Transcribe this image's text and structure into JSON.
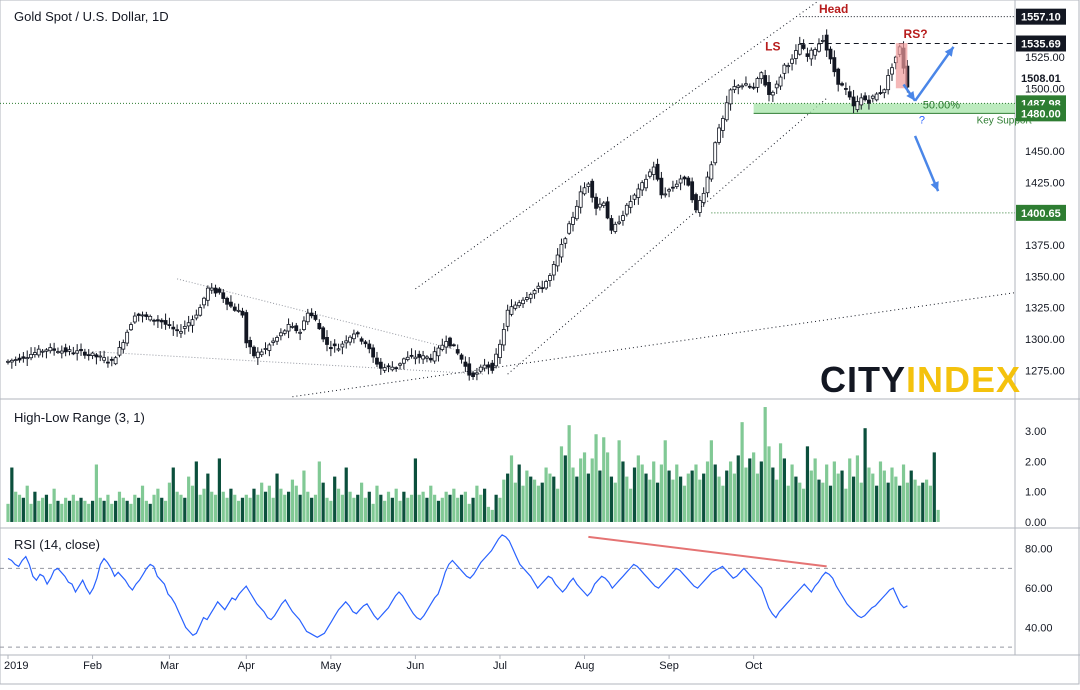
{
  "chart_data": [
    {
      "type": "candlestick",
      "title": "Gold Spot / U.S. Dollar, 1D",
      "ylim": [
        1253,
        1568
      ],
      "y_ticks": [
        1275,
        1300,
        1325,
        1350,
        1375,
        1425,
        1450,
        1500,
        1525
      ],
      "x_ticks": [
        "2019",
        "Feb",
        "Mar",
        "Apr",
        "May",
        "Jun",
        "Jul",
        "Aug",
        "Sep",
        "Oct"
      ],
      "price_path": [
        [
          0,
          1282
        ],
        [
          10,
          1292
        ],
        [
          20,
          1289
        ],
        [
          27,
          1282
        ],
        [
          29,
          1292
        ],
        [
          33,
          1320
        ],
        [
          40,
          1314
        ],
        [
          44,
          1305
        ],
        [
          48,
          1316
        ],
        [
          50,
          1325
        ],
        [
          52,
          1340
        ],
        [
          55,
          1337
        ],
        [
          58,
          1326
        ],
        [
          61,
          1320
        ],
        [
          62,
          1297
        ],
        [
          64,
          1287
        ],
        [
          67,
          1292
        ],
        [
          70,
          1301
        ],
        [
          73,
          1310
        ],
        [
          76,
          1306
        ],
        [
          78,
          1322
        ],
        [
          80,
          1315
        ],
        [
          83,
          1295
        ],
        [
          86,
          1293
        ],
        [
          88,
          1300
        ],
        [
          90,
          1305
        ],
        [
          93,
          1297
        ],
        [
          95,
          1285
        ],
        [
          97,
          1277
        ],
        [
          101,
          1278
        ],
        [
          103,
          1284
        ],
        [
          106,
          1286
        ],
        [
          110,
          1285
        ],
        [
          112,
          1291
        ],
        [
          114,
          1300
        ],
        [
          116,
          1293
        ],
        [
          118,
          1284
        ],
        [
          120,
          1272
        ],
        [
          122,
          1272
        ],
        [
          124,
          1280
        ],
        [
          126,
          1277
        ],
        [
          128,
          1295
        ],
        [
          130,
          1322
        ],
        [
          133,
          1330
        ],
        [
          136,
          1337
        ],
        [
          139,
          1342
        ],
        [
          141,
          1350
        ],
        [
          143,
          1366
        ],
        [
          145,
          1382
        ],
        [
          147,
          1398
        ],
        [
          149,
          1416
        ],
        [
          151,
          1425
        ],
        [
          153,
          1405
        ],
        [
          155,
          1410
        ],
        [
          157,
          1385
        ],
        [
          159,
          1395
        ],
        [
          162,
          1410
        ],
        [
          164,
          1418
        ],
        [
          166,
          1428
        ],
        [
          168,
          1438
        ],
        [
          170,
          1415
        ],
        [
          173,
          1421
        ],
        [
          175,
          1428
        ],
        [
          177,
          1424
        ],
        [
          179,
          1402
        ],
        [
          181,
          1418
        ],
        [
          183,
          1440
        ],
        [
          184,
          1458
        ],
        [
          186,
          1475
        ],
        [
          188,
          1498
        ],
        [
          190,
          1503
        ],
        [
          192,
          1502
        ],
        [
          194,
          1500
        ],
        [
          196,
          1512
        ],
        [
          198,
          1495
        ],
        [
          200,
          1502
        ],
        [
          202,
          1518
        ],
        [
          204,
          1522
        ],
        [
          206,
          1535
        ],
        [
          208,
          1525
        ],
        [
          210,
          1532
        ],
        [
          212,
          1540
        ],
        [
          214,
          1522
        ],
        [
          216,
          1505
        ],
        [
          218,
          1498
        ],
        [
          220,
          1485
        ],
        [
          222,
          1492
        ],
        [
          224,
          1490
        ],
        [
          226,
          1495
        ],
        [
          228,
          1500
        ],
        [
          230,
          1518
        ],
        [
          232,
          1532
        ],
        [
          234,
          1502
        ]
      ],
      "x_max": 262,
      "levels": [
        {
          "label": "1557.10",
          "value": 1557.1,
          "color": "#131722",
          "style": "dotted"
        },
        {
          "label": "1535.69",
          "value": 1535.69,
          "color": "#131722",
          "style": "dashed"
        },
        {
          "label": "1508.01",
          "value": 1508.01,
          "color": "#ffffff",
          "style": "none"
        },
        {
          "label": "1487.98",
          "value": 1487.98,
          "color": "#2e7d32",
          "style": "dotted"
        },
        {
          "label": "1480.00",
          "value": 1480.0,
          "color": "#2e7d32",
          "style": "solid"
        },
        {
          "label": "1400.65",
          "value": 1400.65,
          "color": "#2e7d32",
          "style": "dotted"
        }
      ],
      "annotations": [
        {
          "text": "Head",
          "x": 211,
          "y": 1560,
          "color": "#b71c1c"
        },
        {
          "text": "LS",
          "x": 197,
          "y": 1530,
          "color": "#b71c1c"
        },
        {
          "text": "RS?",
          "x": 233,
          "y": 1540,
          "color": "#b71c1c"
        },
        {
          "text": "50.00%",
          "x": 238,
          "y": 1484,
          "color": "#2e7d32"
        },
        {
          "text": "Key Support",
          "x": 252,
          "y": 1472,
          "color": "#2e7d32"
        },
        {
          "text": "?",
          "x": 237,
          "y": 1472,
          "color": "#2962ff"
        }
      ],
      "support_zone": {
        "x_start": 194,
        "x_end": 262,
        "y_low": 1480,
        "y_high": 1487.98
      },
      "price_label_current": "1508.01",
      "watermark": "CITYINDEX"
    },
    {
      "type": "bar",
      "title": "High-Low Range (3, 1)",
      "ylim": [
        -0.1,
        3.9
      ],
      "y_ticks": [
        "0.00",
        "1.00",
        "2.00",
        "3.00"
      ],
      "series": [
        {
          "values": [
            0.6,
            1.8,
            1.0,
            0.9,
            0.8,
            1.2,
            0.6,
            1.0,
            0.7,
            0.8,
            0.9,
            0.6,
            1.1,
            0.7,
            0.6,
            0.8,
            0.7,
            0.9,
            0.7,
            0.8,
            0.7,
            0.6,
            0.7,
            1.9,
            0.8,
            0.7,
            0.9,
            0.6,
            0.7,
            1.0,
            0.8,
            0.7,
            0.6,
            0.9,
            0.8,
            1.2,
            0.7,
            0.6,
            0.9,
            1.1,
            0.8,
            0.7,
            1.3,
            1.8,
            1.0,
            0.9,
            0.8,
            1.5,
            1.2,
            2.0,
            0.9,
            1.1,
            1.6,
            1.0,
            0.9,
            2.1,
            1.0,
            0.8,
            1.1,
            0.9,
            0.7,
            0.8,
            0.9,
            0.8,
            1.1,
            0.9,
            1.3,
            1.0,
            1.2,
            0.8,
            1.6,
            1.1,
            0.9,
            1.0,
            1.4,
            1.2,
            0.9,
            1.7,
            1.0,
            0.8,
            0.9,
            2.0,
            1.3,
            0.8,
            0.7,
            1.5,
            1.1,
            0.9,
            1.8,
            1.0,
            0.8,
            0.9,
            1.3,
            0.8,
            1.0,
            0.6,
            1.2,
            0.9,
            0.7,
            1.0,
            0.8,
            1.1,
            0.7,
            1.0,
            0.8,
            0.9,
            2.1,
            0.9,
            1.0,
            0.8,
            1.2,
            0.9,
            0.7,
            0.8,
            1.0,
            0.9,
            1.1,
            0.8,
            0.9,
            1.0,
            0.6,
            0.8,
            1.2,
            0.9,
            1.1,
            0.5,
            0.4,
            0.9,
            0.8,
            1.4,
            1.6,
            2.2,
            1.3,
            1.9,
            1.2,
            1.7,
            1.5,
            1.4,
            1.2,
            1.3,
            1.8,
            1.6,
            1.5,
            1.1,
            2.5,
            2.2,
            3.2,
            1.8,
            1.5,
            2.1,
            2.3,
            1.6,
            2.1,
            2.9,
            1.7,
            2.8,
            2.3,
            1.5,
            1.3,
            2.7,
            2.0,
            1.5,
            1.1,
            1.8,
            2.2,
            1.9,
            1.6,
            1.4,
            2.0,
            1.3,
            1.9,
            2.7,
            1.7,
            1.4,
            1.9,
            1.5,
            1.2,
            1.6,
            1.7,
            1.9,
            1.4,
            1.6,
            2.0,
            2.7,
            1.9,
            1.5,
            1.2,
            1.7,
            2.0,
            1.6,
            2.2,
            3.3,
            1.8,
            2.1,
            2.3,
            1.6,
            2.0,
            3.8,
            2.5,
            1.8,
            1.4,
            2.6,
            2.1,
            1.2,
            1.9,
            1.5,
            1.3,
            1.1,
            2.5,
            1.7,
            2.1,
            1.4,
            1.3,
            1.9,
            1.2,
            2.0,
            1.6,
            1.7,
            1.1,
            2.1,
            1.5,
            2.2,
            1.3,
            3.1,
            1.8,
            1.6,
            1.2,
            2.0,
            1.7,
            1.3,
            1.8,
            1.5,
            1.2,
            1.9,
            1.3,
            1.7,
            1.4,
            1.2,
            1.3,
            1.4,
            1.2,
            2.3,
            0.4
          ]
        }
      ]
    },
    {
      "type": "line",
      "title": "RSI (14, close)",
      "ylim": [
        26,
        90
      ],
      "y_ticks": [
        "40.00",
        "60.00",
        "80.00"
      ],
      "bands": [
        70,
        30
      ],
      "series": [
        {
          "values": [
            75,
            74,
            72,
            71,
            74,
            76,
            72,
            66,
            64,
            67,
            66,
            62,
            65,
            69,
            70,
            68,
            66,
            63,
            62,
            58,
            61,
            64,
            60,
            57,
            60,
            65,
            72,
            75,
            73,
            70,
            66,
            68,
            66,
            64,
            61,
            59,
            62,
            64,
            67,
            70,
            72,
            71,
            66,
            64,
            62,
            57,
            55,
            52,
            48,
            44,
            40,
            38,
            36,
            37,
            41,
            45,
            44,
            47,
            50,
            53,
            51,
            49,
            52,
            55,
            54,
            57,
            59,
            61,
            58,
            55,
            52,
            50,
            48,
            45,
            44,
            46,
            49,
            52,
            54,
            51,
            48,
            46,
            44,
            41,
            38,
            37,
            36,
            35,
            36,
            37,
            40,
            43,
            46,
            49,
            51,
            53,
            51,
            48,
            47,
            49,
            51,
            52,
            49,
            46,
            44,
            46,
            48,
            50,
            53,
            56,
            58,
            56,
            53,
            50,
            47,
            45,
            44,
            46,
            49,
            52,
            55,
            57,
            62,
            68,
            72,
            74,
            72,
            70,
            68,
            66,
            65,
            67,
            70,
            73,
            75,
            77,
            79,
            82,
            85,
            87,
            86,
            84,
            80,
            76,
            72,
            70,
            68,
            66,
            63,
            60,
            62,
            64,
            66,
            65,
            62,
            60,
            58,
            60,
            63,
            65,
            62,
            60,
            58,
            56,
            58,
            62,
            64,
            66,
            65,
            63,
            60,
            62,
            64,
            66,
            68,
            70,
            72,
            71,
            69,
            67,
            65,
            63,
            61,
            60,
            62,
            64,
            66,
            68,
            70,
            69,
            67,
            65,
            63,
            61,
            60,
            62,
            64,
            66,
            68,
            69,
            70,
            71,
            69,
            67,
            65,
            66,
            68,
            70,
            68,
            66,
            64,
            62,
            60,
            55,
            50,
            47,
            45,
            48,
            50,
            52,
            54,
            56,
            58,
            60,
            62,
            60,
            58,
            61,
            63,
            66,
            68,
            67,
            65,
            61,
            58,
            55,
            52,
            50,
            48,
            46,
            45,
            46,
            48,
            50,
            51,
            53,
            55,
            57,
            59,
            60,
            56,
            52,
            50,
            51
          ]
        }
      ]
    }
  ]
}
